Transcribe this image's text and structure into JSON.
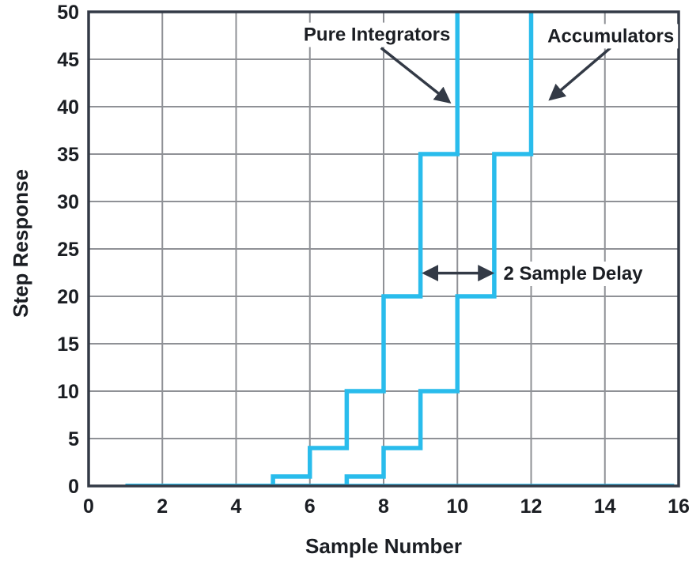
{
  "chart_data": {
    "type": "line",
    "line_style": "step-post",
    "title": "",
    "xlabel": "Sample Number",
    "ylabel": "Step Response",
    "xlim": [
      0,
      16
    ],
    "ylim": [
      0,
      50
    ],
    "xticks": [
      0,
      2,
      4,
      6,
      8,
      10,
      12,
      14,
      16
    ],
    "yticks": [
      0,
      5,
      10,
      15,
      20,
      25,
      30,
      35,
      40,
      45,
      50
    ],
    "grid": true,
    "series": [
      {
        "name": "Pure Integrators",
        "slug": "pure-integrators",
        "x": [
          1,
          5,
          6,
          7,
          8,
          9,
          10
        ],
        "y": [
          0,
          1,
          4,
          10,
          20,
          35,
          56
        ]
      },
      {
        "name": "Accumulators",
        "slug": "accumulators",
        "x": [
          1,
          7,
          8,
          9,
          10,
          11,
          12
        ],
        "y": [
          0,
          1,
          4,
          10,
          20,
          35,
          56
        ]
      }
    ],
    "zero_baseline": {
      "y": 0,
      "x_from": 1,
      "x_to": 15.88
    },
    "annotations": {
      "labels": [
        {
          "id": "pure-integrators-label",
          "text": "Pure Integrators",
          "x": 7.82,
          "y": 47.65,
          "anchor": "middle"
        },
        {
          "id": "accumulators-label",
          "text": "Accumulators",
          "x": 14.16,
          "y": 47.5,
          "anchor": "middle"
        },
        {
          "id": "two-sample-delay-label",
          "text": "2 Sample Delay",
          "x": 11.25,
          "y": 22.45,
          "anchor": "start"
        }
      ],
      "arrows": [
        {
          "id": "pure-integrators-arrow",
          "from": [
            7.93,
            46.2
          ],
          "to": [
            9.78,
            40.5
          ],
          "double": false
        },
        {
          "id": "accumulators-arrow",
          "from": [
            14.15,
            46.2
          ],
          "to": [
            12.52,
            40.8
          ],
          "double": false
        },
        {
          "id": "sample-delay-arrow",
          "from": [
            9.1,
            22.45
          ],
          "to": [
            10.94,
            22.45
          ],
          "double": true
        }
      ]
    },
    "colors": {
      "series": "#29BCEC",
      "grid": "#8F9196",
      "axis": "#333A46",
      "text": "#1B1E23",
      "background": "#FFFFFF"
    }
  }
}
